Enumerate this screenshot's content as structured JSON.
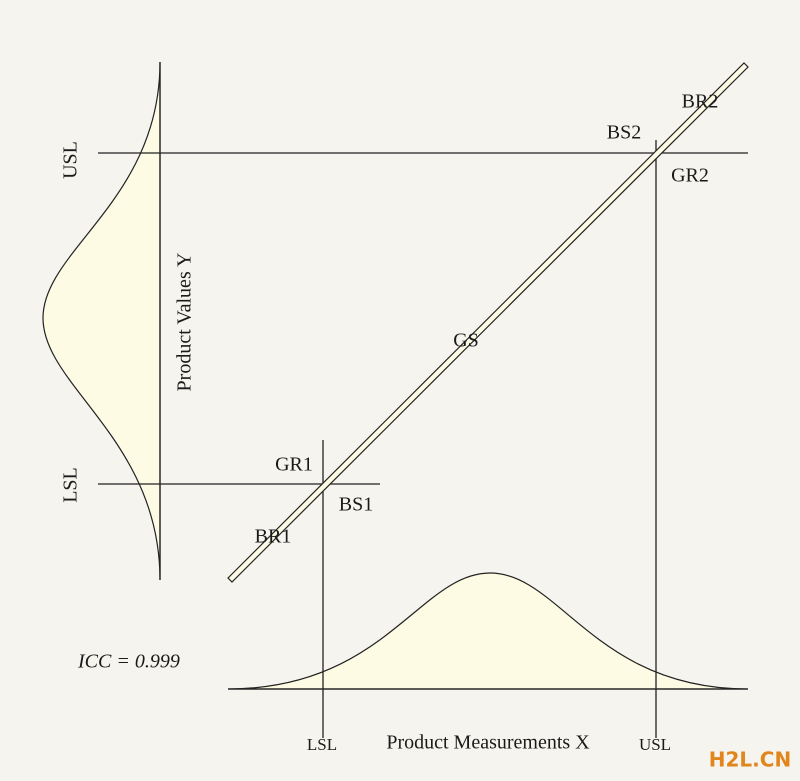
{
  "y_axis": {
    "label": "Product Values Y",
    "usl": "USL",
    "lsl": "LSL"
  },
  "x_axis": {
    "label": "Product Measurements X",
    "usl": "USL",
    "lsl": "LSL"
  },
  "regions": {
    "gr1": "GR1",
    "bs1": "BS1",
    "br1": "BR1",
    "gs": "GS",
    "bs2": "BS2",
    "br2": "BR2",
    "gr2": "GR2"
  },
  "annotation": "ICC = 0.999",
  "watermark": "H2L.CN"
}
